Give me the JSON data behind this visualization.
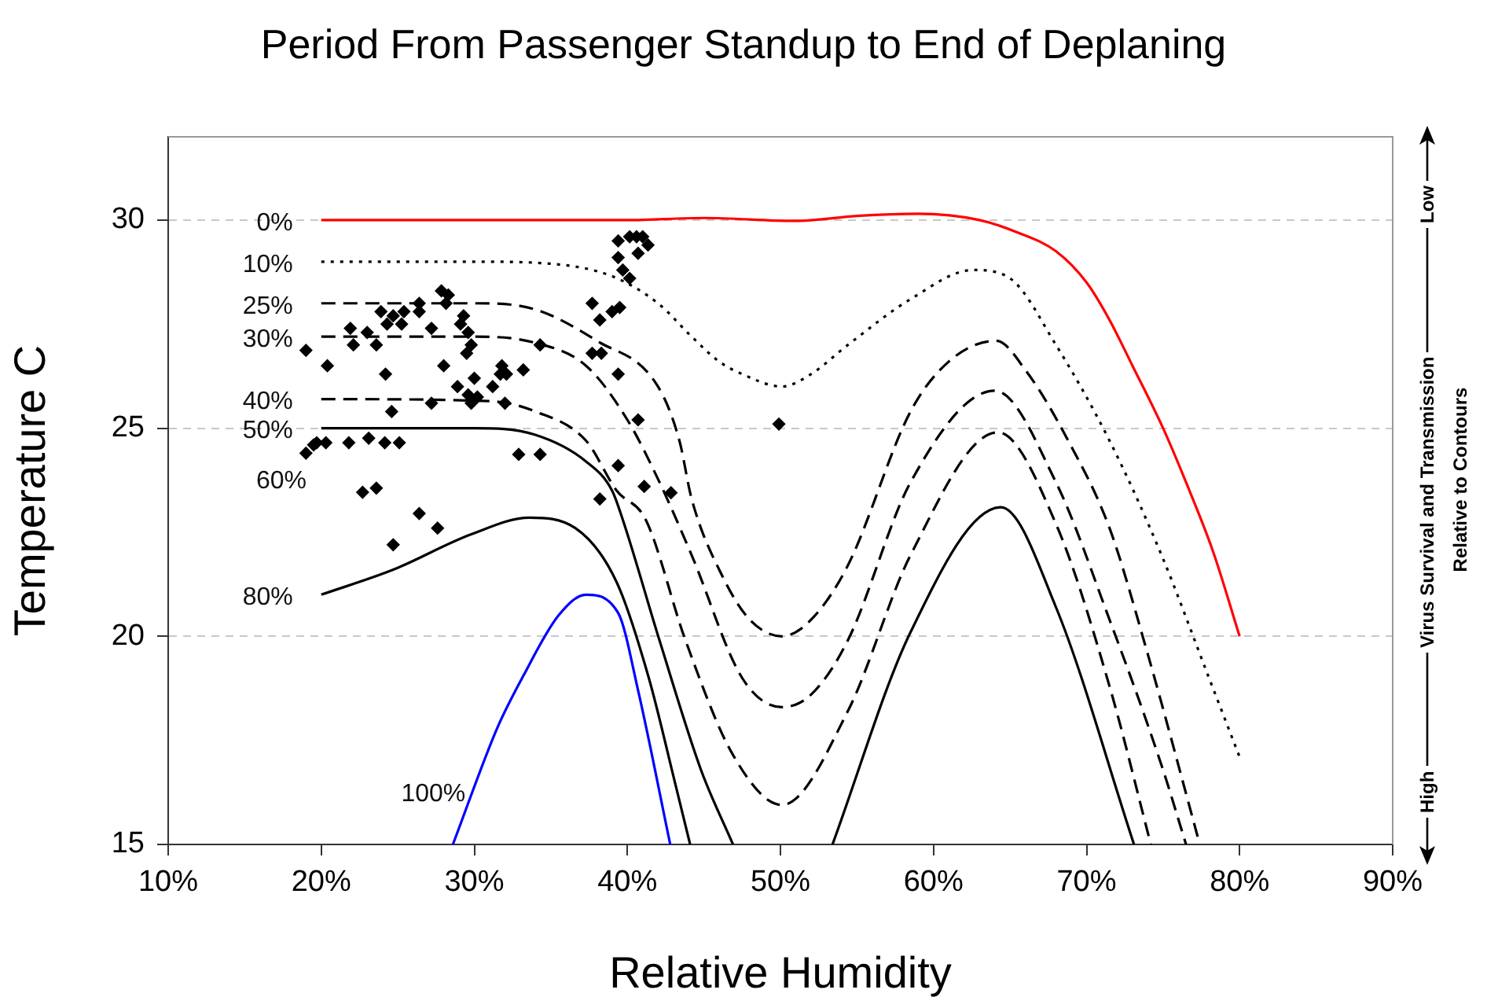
{
  "chart_data": {
    "type": "line",
    "title": "Period From Passenger Standup to End of Deplaning",
    "xlabel": "Relative Humidity",
    "ylabel": "Temperature C",
    "xlim": [
      10,
      90
    ],
    "ylim": [
      15,
      32
    ],
    "xticks": [
      {
        "value": 10,
        "label": "10%"
      },
      {
        "value": 20,
        "label": "20%"
      },
      {
        "value": 30,
        "label": "30%"
      },
      {
        "value": 40,
        "label": "40%"
      },
      {
        "value": 50,
        "label": "50%"
      },
      {
        "value": 60,
        "label": "60%"
      },
      {
        "value": 70,
        "label": "70%"
      },
      {
        "value": 80,
        "label": "80%"
      },
      {
        "value": 90,
        "label": "90%"
      }
    ],
    "yticks": [
      15,
      20,
      25,
      30
    ],
    "grid": "y",
    "legend": false,
    "annotations": [
      "60%",
      "Virus Survival and Transmission",
      "Relative to Contours",
      "High",
      "Low"
    ],
    "series": [
      {
        "name": "0%",
        "type": "line",
        "color": "#ff0000",
        "line_style": "solid",
        "x": [
          20,
          40,
          45,
          51,
          55,
          59,
          63,
          65.5,
          68,
          70,
          71.5,
          73,
          75,
          76.5,
          78.3,
          80
        ],
        "values": [
          30,
          30,
          30.05,
          29.98,
          30.1,
          30.15,
          30.0,
          29.7,
          29.25,
          28.5,
          27.6,
          26.5,
          25,
          23.7,
          22,
          20
        ]
      },
      {
        "name": "10%",
        "type": "line",
        "color": "#000000",
        "line_style": "dotted",
        "x": [
          20,
          30,
          35,
          39,
          42,
          44.2,
          46,
          47.5,
          50.1,
          52,
          54.4,
          58.5,
          62.6,
          65,
          68,
          71.5,
          74.9,
          78,
          80
        ],
        "values": [
          29,
          29,
          28.95,
          28.65,
          28,
          27.2,
          26.6,
          26.3,
          26,
          26.3,
          27,
          28.1,
          28.8,
          28.6,
          27,
          24.7,
          21.95,
          19,
          17.1
        ]
      },
      {
        "name": "25%",
        "type": "line",
        "color": "#000000",
        "line_style": "dashed",
        "x": [
          20,
          30,
          34,
          38,
          42,
          43.4,
          44.2,
          46.2,
          48,
          50.1,
          52,
          54.4,
          58.5,
          61,
          64.1,
          66,
          68.8,
          71.5,
          73.9,
          77.4
        ],
        "values": [
          28,
          28,
          27.85,
          27.1,
          26,
          24.7,
          23.3,
          21.45,
          20.4,
          20,
          20.4,
          21.7,
          25.4,
          26.6,
          27.1,
          26.4,
          24.7,
          22.6,
          19.7,
          15
        ]
      },
      {
        "name": "30%",
        "type": "line",
        "color": "#000000",
        "line_style": "dashed",
        "x": [
          20,
          30,
          34,
          37.3,
          40,
          42.1,
          44.2,
          47.5,
          50.1,
          52,
          54.4,
          58.5,
          64,
          68,
          71.5,
          74.9,
          76.5
        ],
        "values": [
          27.2,
          27.2,
          27.05,
          26.5,
          25.2,
          23.7,
          21.95,
          19,
          18.3,
          18.6,
          19.9,
          23.7,
          25.9,
          23.7,
          20.4,
          16.9,
          15
        ]
      },
      {
        "name": "40%",
        "type": "line",
        "color": "#000000",
        "line_style": "dashed",
        "x": [
          20,
          31,
          34,
          37.3,
          39.3,
          41.2,
          43.8,
          46.9,
          50.1,
          54.4,
          58.5,
          64.2,
          68,
          71.5,
          74.2
        ],
        "values": [
          25.7,
          25.65,
          25.4,
          24.7,
          23.5,
          22.8,
          19.9,
          17.15,
          15.95,
          18.2,
          21.95,
          24.9,
          22.7,
          18.8,
          15
        ]
      },
      {
        "name": "50%",
        "type": "line",
        "color": "#000000",
        "line_style": "solid",
        "x": [
          20,
          30,
          33.9,
          37.3,
          39,
          39.7,
          42.1,
          44.8,
          46.9,
          50,
          53.4,
          58.5,
          64.4,
          68,
          73.1
        ],
        "values": [
          25,
          25,
          24.85,
          24.2,
          23.5,
          22.8,
          19.9,
          16.8,
          15,
          null,
          15,
          20.1,
          23.1,
          20.7,
          15
        ]
      },
      {
        "name": "80%",
        "type": "line",
        "color": "#000000",
        "line_style": "solid",
        "x": [
          20,
          24.7,
          29.8,
          33.6,
          36.6,
          39.3,
          41.4,
          43.1,
          44.1
        ],
        "values": [
          21,
          21.6,
          22.45,
          22.85,
          22.6,
          21.3,
          19,
          16.5,
          15
        ]
      },
      {
        "name": "100%",
        "type": "line",
        "color": "#0000ff",
        "line_style": "solid",
        "x": [
          28.6,
          31.5,
          33.2,
          35.5,
          37.3,
          39.4,
          40.7,
          42.8
        ],
        "values": [
          15,
          17.8,
          19.05,
          20.5,
          21,
          20.56,
          18.7,
          15
        ]
      },
      {
        "type": "scatter",
        "color": "#000000",
        "marker": "diamond",
        "x": [
          19.0,
          20.4,
          21.9,
          22.1,
          23.0,
          23.6,
          23.9,
          24.3,
          24.7,
          25.25,
          25.4,
          26.4,
          26.4,
          27.2,
          27.85,
          28.3,
          28.15,
          29.1,
          29.3,
          29.6,
          29.8,
          29.5,
          28.0,
          24.2,
          28.9,
          30.0,
          29.6,
          30.2,
          29.8,
          31.2,
          31.7,
          32.1,
          31.8,
          32.0,
          33.2,
          27.2,
          24.6,
          34.3,
          37.7,
          38.2,
          39.0,
          39.5,
          37.7,
          38.3,
          39.4,
          40.7,
          39.4,
          38.2,
          41.1,
          42.85,
          39.4,
          39.4,
          39.7,
          40.15,
          40.15,
          40.6,
          41.0,
          41.35,
          40.7,
          19.0,
          19.5,
          19.7,
          20.3,
          21.8,
          23.1,
          24.15,
          25.1,
          22.7,
          23.6,
          24.7,
          26.4,
          27.6,
          32.9,
          34.3,
          49.9
        ],
        "values": [
          26.87,
          26.5,
          27.4,
          27.0,
          27.3,
          27.0,
          27.8,
          27.5,
          27.7,
          27.5,
          27.8,
          27.8,
          28.0,
          27.4,
          28.3,
          28.2,
          28.0,
          27.5,
          27.7,
          27.3,
          27.0,
          26.8,
          26.5,
          26.3,
          26.0,
          26.2,
          25.8,
          25.75,
          25.6,
          26.0,
          26.3,
          26.3,
          26.5,
          25.6,
          26.4,
          25.6,
          25.4,
          27.0,
          28.0,
          27.6,
          27.8,
          27.9,
          26.8,
          26.8,
          26.3,
          25.2,
          24.1,
          23.3,
          23.6,
          23.45,
          29.5,
          29.1,
          28.8,
          28.6,
          29.6,
          29.6,
          29.6,
          29.4,
          29.2,
          24.4,
          24.6,
          24.65,
          24.65,
          24.65,
          24.76,
          24.65,
          24.65,
          23.46,
          23.56,
          22.2,
          22.95,
          22.6,
          24.37,
          24.37,
          25.1
        ]
      }
    ]
  }
}
